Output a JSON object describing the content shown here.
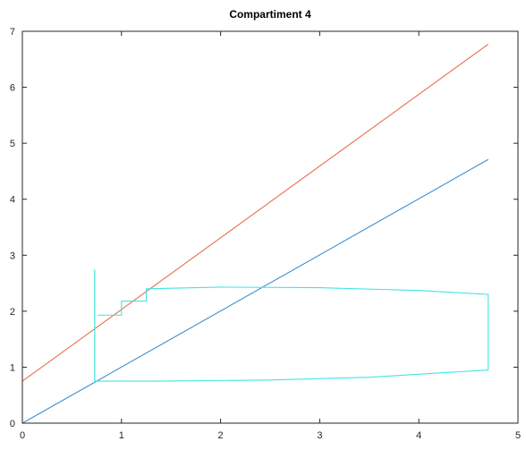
{
  "chart_data": {
    "type": "line",
    "title": "Compartiment 4",
    "xlabel": "",
    "ylabel": "",
    "xlim": [
      0,
      5
    ],
    "ylim": [
      0,
      7
    ],
    "xticks": [
      0,
      1,
      2,
      3,
      4,
      5
    ],
    "yticks": [
      0,
      1,
      2,
      3,
      4,
      5,
      6,
      7
    ],
    "grid": false,
    "series": [
      {
        "color": "#e8704b",
        "x": [
          0,
          4.7
        ],
        "y": [
          0.75,
          6.77
        ]
      },
      {
        "color": "#3d8fd1",
        "x": [
          0,
          4.7
        ],
        "y": [
          0,
          4.71
        ]
      },
      {
        "color": "#7ee87e",
        "x": [
          0.73,
          0.73
        ],
        "y": [
          0.75,
          2.74
        ]
      },
      {
        "color": "#3ee6e6",
        "x": [
          0.73,
          0.73,
          1.3,
          2.5,
          3.5,
          4.7,
          4.7,
          4.0,
          3.0,
          2.0,
          1.25,
          1.25,
          1.0,
          1.0,
          0.76
        ],
        "y": [
          2.74,
          0.75,
          0.75,
          0.77,
          0.82,
          0.95,
          2.3,
          2.37,
          2.42,
          2.43,
          2.4,
          2.18,
          2.18,
          1.93,
          1.93
        ]
      }
    ]
  }
}
